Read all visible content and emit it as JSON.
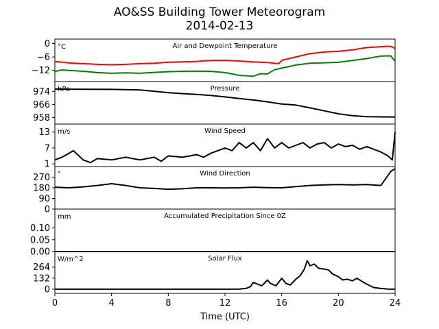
{
  "title": "AO&SS Building Tower Meteorogram",
  "subtitle": "2014-02-13",
  "xlabel": "Time (UTC)",
  "x_ticks": [
    "0",
    "4",
    "8",
    "12",
    "16",
    "20",
    "24"
  ],
  "chart_data": [
    {
      "type": "line",
      "title": "Air and Dewpoint Temperature",
      "unit": "°C",
      "ylim": [
        -17,
        2
      ],
      "yticks": [
        "0",
        "−6",
        "−12"
      ],
      "ytick_values": [
        0,
        -6,
        -12
      ],
      "series": [
        {
          "color": "#ff0000",
          "x": [
            0,
            1,
            2,
            3,
            4,
            5,
            6,
            7,
            8,
            9,
            10,
            11,
            12,
            13,
            14,
            15,
            15.5,
            15.8,
            16,
            17,
            18,
            19,
            20,
            21,
            22,
            23,
            23.5,
            23.8,
            24
          ],
          "values": [
            -8,
            -8.7,
            -9,
            -9.3,
            -9.5,
            -9.3,
            -9,
            -8.8,
            -8.4,
            -8.2,
            -8,
            -7.6,
            -7.5,
            -7.8,
            -8.2,
            -8.5,
            -8.8,
            -9,
            -7.5,
            -6,
            -4.5,
            -3.8,
            -3.5,
            -2.8,
            -1.8,
            -1.4,
            -1.2,
            -1.5,
            -2.2
          ]
        },
        {
          "color": "#008000",
          "x": [
            0,
            0.5,
            1,
            2,
            3,
            4,
            5,
            6,
            7,
            8,
            9,
            10,
            11,
            12,
            13,
            14,
            14.5,
            15,
            15.5,
            16,
            17,
            18,
            19,
            20,
            21,
            22,
            23,
            23.7,
            24
          ],
          "values": [
            -12.5,
            -11.8,
            -12,
            -12.4,
            -13,
            -13.3,
            -13.1,
            -13.3,
            -12.9,
            -12.6,
            -12.4,
            -12.3,
            -12.4,
            -13,
            -14.2,
            -14.6,
            -13.5,
            -13.6,
            -11.7,
            -11,
            -9.6,
            -8.8,
            -8.6,
            -8.4,
            -7.6,
            -6.7,
            -5.6,
            -5.5,
            -8
          ]
        }
      ]
    },
    {
      "type": "line",
      "title": "Pressure",
      "unit": "hPa",
      "ylim": [
        954,
        980
      ],
      "yticks": [
        "974",
        "966",
        "958"
      ],
      "ytick_values": [
        974,
        966,
        958
      ],
      "series": [
        {
          "color": "#000000",
          "x": [
            0,
            2,
            4,
            6,
            7,
            8,
            9,
            10,
            11,
            12,
            13,
            14,
            15,
            16,
            17,
            18,
            19,
            20,
            21,
            22,
            23,
            24
          ],
          "values": [
            975.4,
            975.3,
            975.2,
            974.9,
            974.1,
            973.2,
            972.6,
            972.1,
            971.5,
            970.6,
            969.6,
            968.7,
            967.6,
            966.3,
            965.6,
            963.9,
            962.1,
            960.3,
            959.1,
            958.5,
            958.4,
            958.3
          ]
        }
      ]
    },
    {
      "type": "line",
      "title": "Wind Speed",
      "unit": "m/s",
      "ylim": [
        0,
        16
      ],
      "yticks": [
        "13",
        "7",
        "1"
      ],
      "ytick_values": [
        13,
        7,
        1
      ],
      "series": [
        {
          "color": "#000000",
          "x": [
            0,
            0.5,
            1,
            1.3,
            1.7,
            2,
            2.5,
            3,
            4,
            5,
            6,
            7,
            7.5,
            8,
            9,
            10,
            10.5,
            11,
            11.5,
            12,
            12.5,
            13,
            13.5,
            14,
            14.5,
            15,
            15.5,
            16,
            16.5,
            17,
            17.5,
            18,
            18.5,
            19,
            19.5,
            20,
            20.5,
            21,
            21.5,
            22,
            22.5,
            23,
            23.5,
            23.8,
            24
          ],
          "values": [
            2.5,
            3.5,
            5,
            6,
            4,
            2.5,
            1.5,
            3,
            2.5,
            3.5,
            2.5,
            3.5,
            2,
            4,
            3.5,
            4.5,
            3.5,
            5,
            6,
            7,
            6,
            9,
            7,
            9,
            6,
            10.5,
            7,
            9,
            7,
            8,
            9,
            7,
            8.5,
            9,
            7,
            8.5,
            7.5,
            8,
            6.5,
            7.5,
            6.5,
            5.5,
            4,
            2.5,
            13
          ]
        }
      ]
    },
    {
      "type": "line",
      "title": "Wind Direction",
      "unit": "°",
      "ylim": [
        0,
        360
      ],
      "yticks": [
        "270",
        "180",
        "90",
        "0"
      ],
      "ytick_values": [
        270,
        180,
        90,
        0
      ],
      "series": [
        {
          "color": "#000000",
          "x": [
            0,
            1,
            2,
            3,
            4,
            5,
            6,
            7,
            8,
            9,
            10,
            11,
            12,
            13,
            14,
            15,
            16,
            17,
            18,
            19,
            20,
            21,
            22,
            23,
            23.7,
            24
          ],
          "values": [
            185,
            180,
            188,
            200,
            215,
            200,
            180,
            175,
            168,
            172,
            180,
            180,
            178,
            180,
            185,
            182,
            180,
            190,
            200,
            205,
            208,
            205,
            208,
            200,
            320,
            340
          ]
        }
      ]
    },
    {
      "type": "line",
      "title": "Accumulated Precipitation Since 0Z",
      "unit": "mm",
      "ylim": [
        0,
        0.18
      ],
      "yticks": [
        "0.10",
        "0.05",
        "0.00"
      ],
      "ytick_values": [
        0.1,
        0.05,
        0.0
      ],
      "series": [
        {
          "color": "#000000",
          "x": [
            0,
            24
          ],
          "values": [
            0,
            0
          ]
        }
      ]
    },
    {
      "type": "line",
      "title": "Solar Flux",
      "unit": "W/m^2",
      "ylim": [
        -50,
        450
      ],
      "yticks": [
        "264",
        "132",
        "0"
      ],
      "ytick_values": [
        264,
        132,
        0
      ],
      "series": [
        {
          "color": "#000000",
          "x": [
            0,
            6,
            12,
            13,
            13.5,
            13.8,
            14,
            14.3,
            14.6,
            15,
            15.2,
            15.6,
            16,
            16.3,
            16.6,
            17,
            17.3,
            17.6,
            17.8,
            18,
            18.3,
            18.6,
            19,
            19.3,
            19.6,
            20,
            20.3,
            20.6,
            21,
            21.3,
            21.6,
            22,
            22.5,
            23,
            23.5,
            24
          ],
          "values": [
            0,
            0,
            0,
            2,
            10,
            30,
            80,
            60,
            40,
            110,
            70,
            40,
            130,
            70,
            50,
            120,
            160,
            240,
            340,
            280,
            300,
            250,
            240,
            230,
            180,
            150,
            110,
            120,
            100,
            130,
            100,
            60,
            20,
            8,
            2,
            0
          ]
        }
      ]
    }
  ]
}
